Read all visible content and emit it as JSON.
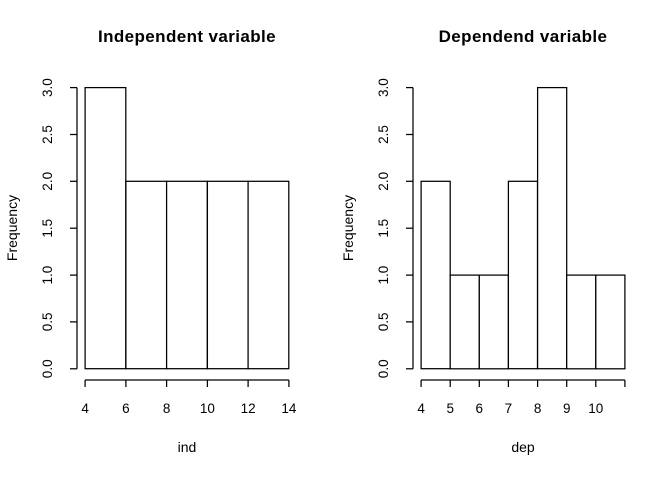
{
  "page": {
    "background": "#ffffff",
    "foreground": "#000000"
  },
  "chart_data": [
    {
      "type": "bar",
      "subtype": "histogram",
      "title": "Independent variable",
      "xlabel": "ind",
      "ylabel": "Frequency",
      "breaks": [
        4,
        6,
        8,
        10,
        12,
        14
      ],
      "counts": [
        3,
        2,
        2,
        2,
        2
      ],
      "xlim": [
        4,
        14
      ],
      "ylim": [
        0,
        3
      ],
      "x_ticks": [
        4,
        6,
        8,
        10,
        12,
        14
      ],
      "x_tick_labels": [
        "4",
        "6",
        "8",
        "10",
        "12",
        "14"
      ],
      "y_ticks": [
        0,
        0.5,
        1,
        1.5,
        2,
        2.5,
        3
      ],
      "y_tick_labels": [
        "0.0",
        "0.5",
        "1.0",
        "1.5",
        "2.0",
        "2.5",
        "3.0"
      ],
      "bar_fill": "#ffffff",
      "line_color": "#000000",
      "grid": "off",
      "legend": "none"
    },
    {
      "type": "bar",
      "subtype": "histogram",
      "title": "Dependend variable",
      "xlabel": "dep",
      "ylabel": "Frequency",
      "breaks": [
        4,
        5,
        6,
        7,
        8,
        9,
        10,
        11
      ],
      "counts": [
        2,
        1,
        1,
        2,
        3,
        1,
        1
      ],
      "xlim": [
        4,
        11
      ],
      "ylim": [
        0,
        3
      ],
      "x_ticks": [
        4,
        5,
        6,
        7,
        8,
        9,
        10,
        11
      ],
      "x_tick_labels": [
        "4",
        "5",
        "6",
        "7",
        "8",
        "9",
        "10",
        ""
      ],
      "y_ticks": [
        0,
        0.5,
        1,
        1.5,
        2,
        2.5,
        3
      ],
      "y_tick_labels": [
        "0.0",
        "0.5",
        "1.0",
        "1.5",
        "2.0",
        "2.5",
        "3.0"
      ],
      "bar_fill": "#ffffff",
      "line_color": "#000000",
      "grid": "off",
      "legend": "none"
    }
  ]
}
